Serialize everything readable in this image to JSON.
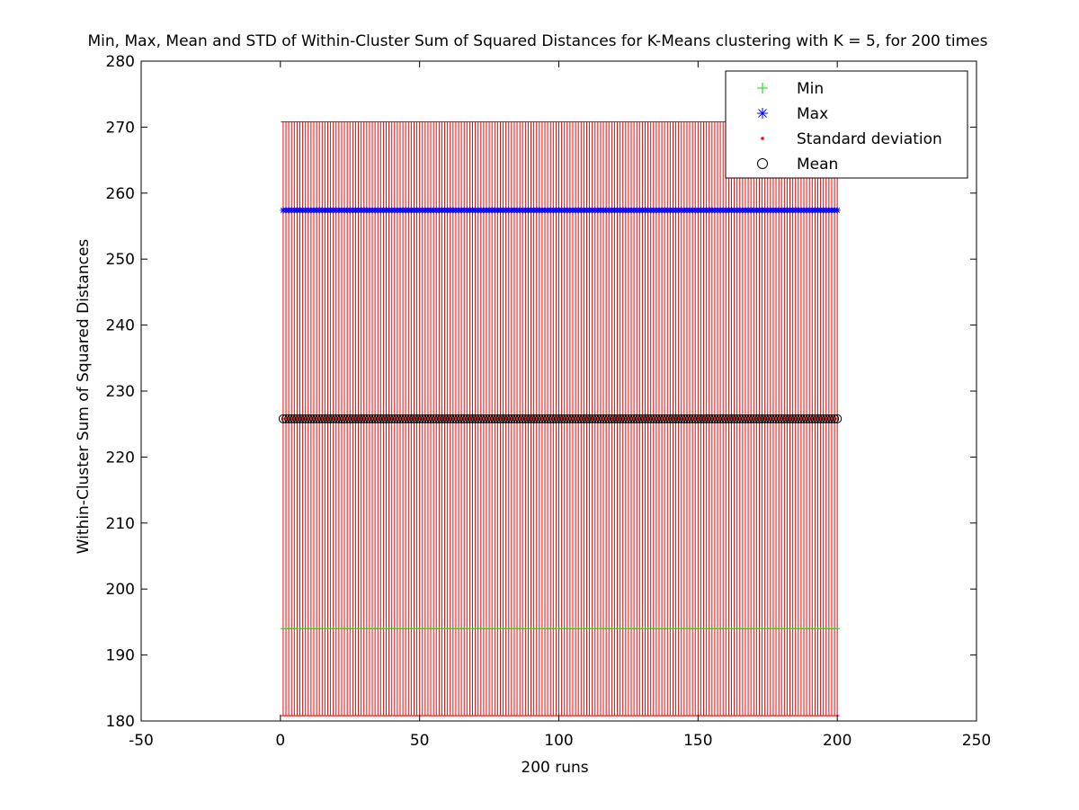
{
  "chart_data": {
    "type": "errorbar",
    "title": "Min, Max, Mean and STD of Within-Cluster Sum of Squared Distances for K-Means clustering with K = 5, for 200 times",
    "xlabel": "200 runs",
    "ylabel": "Within-Cluster Sum of Squared Distances",
    "xlim": [
      -50,
      250
    ],
    "ylim": [
      180,
      280
    ],
    "xticks": [
      -50,
      0,
      50,
      100,
      150,
      200,
      250
    ],
    "yticks": [
      180,
      190,
      200,
      210,
      220,
      230,
      240,
      250,
      260,
      270,
      280
    ],
    "runs": {
      "start": 1,
      "end": 200,
      "step": 1
    },
    "legend": {
      "position": "top-right",
      "entries": [
        {
          "label": "Min",
          "marker": "+",
          "color": "#00dd00"
        },
        {
          "label": "Max",
          "marker": "*",
          "color": "#0000ff"
        },
        {
          "label": "Standard deviation",
          "marker": ".",
          "color": "#ff0000"
        },
        {
          "label": "Mean",
          "marker": "o",
          "color": "#000000"
        }
      ]
    },
    "series": [
      {
        "name": "Min",
        "value": 194.0,
        "color": "#00dd00",
        "marker": "+"
      },
      {
        "name": "Max",
        "value": 257.4,
        "color": "#0000ff",
        "marker": "*"
      },
      {
        "name": "Mean",
        "value": 225.8,
        "color": "#000000",
        "marker": "o"
      },
      {
        "name": "Standard deviation",
        "center": 225.8,
        "std": 45.0,
        "color": "#ff0000",
        "marker": "."
      }
    ]
  }
}
